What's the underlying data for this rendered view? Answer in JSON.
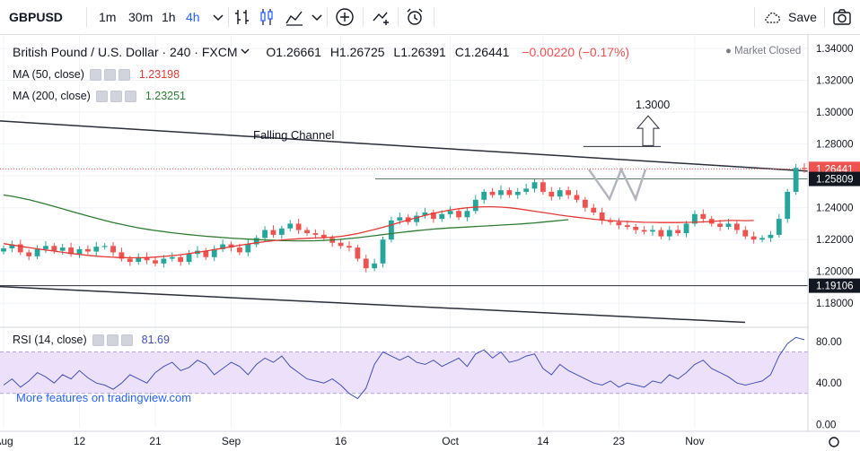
{
  "toolbar": {
    "symbol": "GBPUSD",
    "intervals": [
      "1m",
      "30m",
      "1h",
      "4h"
    ],
    "active_interval": "4h",
    "save_label": "Save"
  },
  "legend": {
    "title": "British Pound / U.S. Dollar · 240 · FXCM",
    "open": "O1.26661",
    "high": "H1.26725",
    "low": "L1.26391",
    "close": "C1.26441",
    "change": "−0.00220 (−0.17%)",
    "status": "Market Closed",
    "ma50_label": "MA (50, close)",
    "ma50_value": "1.23198",
    "ma200_label": "MA (200, close)",
    "ma200_value": "1.23251",
    "rsi_label": "RSI (14, close)",
    "rsi_value": "81.69"
  },
  "promo_text": "More features on tradingview.com",
  "colors": {
    "up": "#26a69a",
    "down": "#ef5350",
    "ma50": "#e53935",
    "ma200": "#2e7d32",
    "rsi": "#3f51b5",
    "rsi_band": "#ede0fb",
    "accent": "#2962ff"
  },
  "chart_data": {
    "type": "candlestick",
    "symbol": "GBPUSD",
    "timeframe": "240",
    "price_axis": {
      "range": [
        1.1655,
        1.3485
      ],
      "ticks": [
        "1.34000",
        "1.32000",
        "1.30000",
        "1.28000",
        "1.26000",
        "1.24000",
        "1.22000",
        "1.20000",
        "1.18000"
      ],
      "tick_values": [
        1.34,
        1.32,
        1.3,
        1.28,
        1.26,
        1.24,
        1.22,
        1.2,
        1.18
      ]
    },
    "time_axis": {
      "labels": [
        "Aug",
        "12",
        "21",
        "Sep",
        "16",
        "Oct",
        "14",
        "23",
        "Nov"
      ],
      "label_positions_index": [
        0,
        9,
        18,
        27,
        40,
        53,
        64,
        73,
        82
      ],
      "total_index": 95
    },
    "closes": [
      1.2145,
      1.217,
      1.212,
      1.2095,
      1.214,
      1.216,
      1.213,
      1.215,
      1.211,
      1.214,
      1.2125,
      1.2155,
      1.216,
      1.212,
      1.208,
      1.206,
      1.209,
      1.207,
      1.205,
      1.208,
      1.209,
      1.206,
      1.211,
      1.213,
      1.209,
      1.214,
      1.217,
      1.215,
      1.212,
      1.217,
      1.221,
      1.226,
      1.223,
      1.227,
      1.23,
      1.226,
      1.224,
      1.223,
      1.221,
      1.218,
      1.216,
      1.215,
      1.208,
      1.202,
      1.205,
      1.22,
      1.232,
      1.234,
      1.231,
      1.235,
      1.237,
      1.233,
      1.236,
      1.238,
      1.234,
      1.238,
      1.245,
      1.25,
      1.248,
      1.251,
      1.248,
      1.25,
      1.252,
      1.256,
      1.25,
      1.247,
      1.251,
      1.248,
      1.245,
      1.24,
      1.237,
      1.232,
      1.231,
      1.229,
      1.228,
      1.226,
      1.225,
      1.226,
      1.222,
      1.226,
      1.224,
      1.23,
      1.236,
      1.233,
      1.23,
      1.228,
      1.23,
      1.226,
      1.222,
      1.22,
      1.221,
      1.223,
      1.233,
      1.25,
      1.265,
      1.2644
    ],
    "ma50": [
      1.2175,
      1.2166,
      1.2158,
      1.215,
      1.2142,
      1.2135,
      1.2128,
      1.212,
      1.2113,
      1.2107,
      1.2101,
      1.2096,
      1.2092,
      1.2089,
      1.2087,
      1.2086,
      1.2086,
      1.2087,
      1.209,
      1.2094,
      1.2099,
      1.2105,
      1.2112,
      1.212,
      1.2128,
      1.2137,
      1.2146,
      1.2155,
      1.2164,
      1.2172,
      1.218,
      1.2187,
      1.2193,
      1.2198,
      1.2202,
      1.2205,
      1.2208,
      1.221,
      1.2212,
      1.2215,
      1.222,
      1.2228,
      1.2238,
      1.225,
      1.2263,
      1.2277,
      1.2292,
      1.2308,
      1.2323,
      1.2338,
      1.2352,
      1.2365,
      1.2376,
      1.2386,
      1.2394,
      1.24,
      1.2404,
      1.2406,
      1.2406,
      1.2404,
      1.24,
      1.2394,
      1.2386,
      1.2378,
      1.237,
      1.2362,
      1.2354,
      1.2347,
      1.234,
      1.2334,
      1.2328,
      1.2323,
      1.2319,
      1.2316,
      1.2313,
      1.2311,
      1.2309,
      1.2308,
      1.2307,
      1.2307,
      1.2307,
      1.2308,
      1.2309,
      1.2311,
      1.2314,
      1.2317,
      1.232,
      1.232,
      1.2319,
      1.232
    ],
    "ma200": [
      1.248,
      1.2472,
      1.2462,
      1.245,
      1.2437,
      1.2423,
      1.2408,
      1.2393,
      1.2378,
      1.2363,
      1.2348,
      1.2334,
      1.232,
      1.2307,
      1.2295,
      1.2284,
      1.2274,
      1.2265,
      1.2257,
      1.225,
      1.2243,
      1.2237,
      1.2231,
      1.2226,
      1.2221,
      1.2217,
      1.2213,
      1.2209,
      1.2206,
      1.2203,
      1.22,
      1.2198,
      1.2196,
      1.2194,
      1.2193,
      1.2192,
      1.2192,
      1.2193,
      1.2195,
      1.2198,
      1.2202,
      1.2207,
      1.2212,
      1.2218,
      1.2224,
      1.2231,
      1.2238,
      1.2244,
      1.225,
      1.2256,
      1.2261,
      1.2266,
      1.227,
      1.2273,
      1.2276,
      1.2279,
      1.2282,
      1.2285,
      1.2288,
      1.2291,
      1.2294,
      1.2297,
      1.2301,
      1.2305,
      1.231,
      1.2315,
      1.232,
      1.2325
    ],
    "current_price": 1.26441,
    "price_tags": [
      {
        "value": "1.26441",
        "price": 1.26441,
        "kind": "last"
      },
      {
        "value": "1.25809",
        "price": 1.25809,
        "kind": "line"
      },
      {
        "value": "1.19106",
        "price": 1.19106,
        "kind": "line"
      }
    ],
    "annotations": [
      {
        "text": "Falling Channel",
        "type": "label"
      },
      {
        "text": "1.3000",
        "type": "target",
        "price": 1.3
      }
    ],
    "channel": {
      "upper_start": 1.2945,
      "upper_end": 1.263,
      "lower_start": 1.1905,
      "lower_end": 1.168
    },
    "horizontal_lines": [
      {
        "price": 1.2581
      },
      {
        "price": 1.19106
      }
    ],
    "rsi": {
      "range": [
        -3.0,
        92.0
      ],
      "ticks": [
        "80.00",
        "40.00",
        "0.00"
      ],
      "tick_values": [
        80,
        40,
        0
      ],
      "band": [
        30,
        70
      ],
      "current": 81.69,
      "values": [
        38,
        44,
        36,
        42,
        50,
        46,
        40,
        48,
        44,
        52,
        45,
        40,
        38,
        34,
        40,
        48,
        44,
        40,
        50,
        56,
        60,
        52,
        55,
        62,
        58,
        48,
        54,
        60,
        56,
        48,
        58,
        64,
        60,
        66,
        56,
        50,
        44,
        42,
        40,
        44,
        38,
        30,
        25,
        35,
        58,
        70,
        66,
        62,
        66,
        60,
        58,
        62,
        56,
        60,
        64,
        56,
        68,
        72,
        64,
        70,
        60,
        62,
        66,
        68,
        54,
        48,
        58,
        52,
        48,
        44,
        40,
        38,
        42,
        36,
        40,
        38,
        36,
        42,
        40,
        48,
        44,
        50,
        58,
        62,
        54,
        50,
        46,
        40,
        38,
        40,
        42,
        48,
        66,
        78,
        84,
        81.69
      ]
    }
  }
}
